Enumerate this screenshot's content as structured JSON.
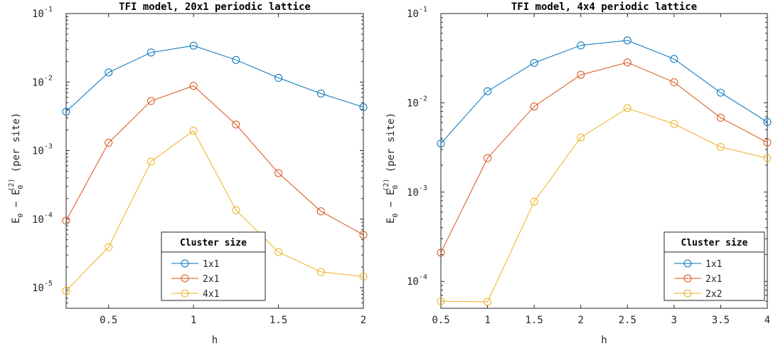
{
  "chart_data": [
    {
      "type": "line",
      "title": "TFI model, 20x1 periodic lattice",
      "xlabel": "h",
      "ylabel": "E_0 - E_0^(2) (per site)",
      "ylabel_parts": {
        "e": "E",
        "sub": "0",
        "dash": "−",
        "sup": "(2)",
        "tail": "(per site)"
      },
      "yscale": "log",
      "xlim": [
        0.25,
        2
      ],
      "ylim": [
        5e-06,
        0.1
      ],
      "xticks": [
        0.5,
        1,
        1.5,
        2
      ],
      "xtick_labels": [
        "0.5",
        "1",
        "1.5",
        "2"
      ],
      "yticks": [
        1e-05,
        0.0001,
        0.001,
        0.01,
        0.1
      ],
      "ytick_labels": [
        {
          "base": "10",
          "exp": "-5"
        },
        {
          "base": "10",
          "exp": "-4"
        },
        {
          "base": "10",
          "exp": "-3"
        },
        {
          "base": "10",
          "exp": "-2"
        },
        {
          "base": "10",
          "exp": "-1"
        }
      ],
      "x": [
        0.25,
        0.5,
        0.75,
        1,
        1.25,
        1.5,
        1.75,
        2
      ],
      "series": [
        {
          "name": "1x1",
          "color": "#0072bd",
          "values": [
            0.0037,
            0.0138,
            0.027,
            0.034,
            0.021,
            0.0115,
            0.0068,
            0.0043
          ]
        },
        {
          "name": "2x1",
          "color": "#d95319",
          "values": [
            9.5e-05,
            0.0013,
            0.0053,
            0.0088,
            0.0024,
            0.00047,
            0.00013,
            5.9e-05
          ]
        },
        {
          "name": "4x1",
          "color": "#edb120",
          "values": [
            9e-06,
            3.9e-05,
            0.00069,
            0.00195,
            0.000135,
            3.3e-05,
            1.7e-05,
            1.45e-05
          ]
        }
      ],
      "legend": {
        "title": "Cluster size",
        "position": "bottom-right"
      },
      "grid": false
    },
    {
      "type": "line",
      "title": "TFI model, 4x4 periodic lattice",
      "xlabel": "h",
      "ylabel": "E_0 - E_0^(2) (per site)",
      "ylabel_parts": {
        "e": "E",
        "sub": "0",
        "dash": "−",
        "sup": "(2)",
        "tail": "(per site)"
      },
      "yscale": "log",
      "xlim": [
        0.5,
        4
      ],
      "ylim": [
        5e-05,
        0.1
      ],
      "xticks": [
        0.5,
        1,
        1.5,
        2,
        2.5,
        3,
        3.5,
        4
      ],
      "xtick_labels": [
        "0.5",
        "1",
        "1.5",
        "2",
        "2.5",
        "3",
        "3.5",
        "4"
      ],
      "yticks": [
        0.0001,
        0.001,
        0.01,
        0.1
      ],
      "ytick_labels": [
        {
          "base": "10",
          "exp": "-4"
        },
        {
          "base": "10",
          "exp": "-3"
        },
        {
          "base": "10",
          "exp": "-2"
        },
        {
          "base": "10",
          "exp": "-1"
        }
      ],
      "x": [
        0.5,
        1,
        1.5,
        2,
        2.5,
        3,
        3.5,
        4
      ],
      "series": [
        {
          "name": "1x1",
          "color": "#0072bd",
          "values": [
            0.0035,
            0.0135,
            0.028,
            0.044,
            0.05,
            0.031,
            0.013,
            0.0061
          ]
        },
        {
          "name": "2x1",
          "color": "#d95319",
          "values": [
            0.00021,
            0.0024,
            0.0091,
            0.0206,
            0.0283,
            0.017,
            0.0068,
            0.0036
          ]
        },
        {
          "name": "2x2",
          "color": "#edb120",
          "values": [
            6e-05,
            5.9e-05,
            0.00078,
            0.0041,
            0.0087,
            0.0058,
            0.0032,
            0.0024
          ]
        }
      ],
      "legend": {
        "title": "Cluster size",
        "position": "bottom-right"
      },
      "grid": false
    }
  ]
}
